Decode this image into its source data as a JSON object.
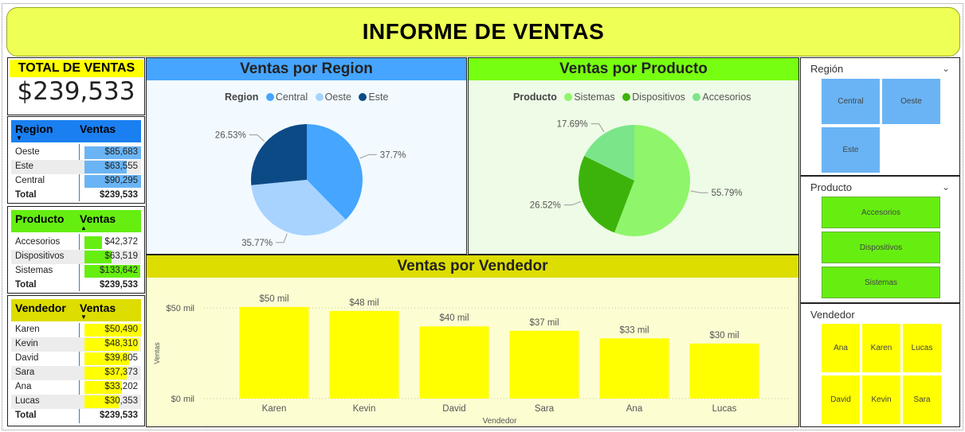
{
  "title": "INFORME DE VENTAS",
  "colors": {
    "yellow": "#ffff00",
    "blue": "#45a5ff",
    "green": "#66ee11",
    "light_yellow": "#eeff55"
  },
  "total": {
    "label": "TOTAL DE VENTAS",
    "value": "$239,533"
  },
  "region_table": {
    "col1": "Region",
    "col2": "Ventas",
    "rows": [
      {
        "name": "Oeste",
        "value": "$85,683",
        "amount": 85683
      },
      {
        "name": "Este",
        "value": "$63,555",
        "amount": 63555
      },
      {
        "name": "Central",
        "value": "$90,295",
        "amount": 90295
      }
    ],
    "total_label": "Total",
    "total_value": "$239,533"
  },
  "product_table": {
    "col1": "Producto",
    "col2": "Ventas",
    "rows": [
      {
        "name": "Accesorios",
        "value": "$42,372",
        "amount": 42372
      },
      {
        "name": "Dispositivos",
        "value": "$63,519",
        "amount": 63519
      },
      {
        "name": "Sistemas",
        "value": "$133,642",
        "amount": 133642
      }
    ],
    "total_label": "Total",
    "total_value": "$239,533"
  },
  "seller_table": {
    "col1": "Vendedor",
    "col2": "Ventas",
    "rows": [
      {
        "name": "Karen",
        "value": "$50,490",
        "amount": 50490
      },
      {
        "name": "Kevin",
        "value": "$48,310",
        "amount": 48310
      },
      {
        "name": "David",
        "value": "$39,805",
        "amount": 39805
      },
      {
        "name": "Sara",
        "value": "$37,373",
        "amount": 37373
      },
      {
        "name": "Ana",
        "value": "$33,202",
        "amount": 33202
      },
      {
        "name": "Lucas",
        "value": "$30,353",
        "amount": 30353
      }
    ],
    "total_label": "Total",
    "total_value": "$239,533"
  },
  "region_panel": {
    "title": "Ventas por Region",
    "legend_title": "Region"
  },
  "product_panel": {
    "title": "Ventas por Producto",
    "legend_title": "Producto"
  },
  "seller_panel": {
    "title": "Ventas por Vendedor"
  },
  "chart_data": [
    {
      "type": "pie",
      "title": "Ventas por Region",
      "legend_title": "Region",
      "categories": [
        "Central",
        "Oeste",
        "Este"
      ],
      "values": [
        37.7,
        35.77,
        26.53
      ],
      "labels": [
        "37.7%",
        "35.77%",
        "26.53%"
      ],
      "colors": [
        "#45a5ff",
        "#a8d3ff",
        "#0c4a86"
      ]
    },
    {
      "type": "pie",
      "title": "Ventas por Producto",
      "legend_title": "Producto",
      "categories": [
        "Sistemas",
        "Dispositivos",
        "Accesorios"
      ],
      "values": [
        55.79,
        26.52,
        17.69
      ],
      "labels": [
        "55.79%",
        "26.52%",
        "17.69%"
      ],
      "colors": [
        "#8ff56a",
        "#3cb30a",
        "#7be58a"
      ]
    },
    {
      "type": "bar",
      "title": "Ventas por Vendedor",
      "categories": [
        "Karen",
        "Kevin",
        "David",
        "Sara",
        "Ana",
        "Lucas"
      ],
      "values": [
        50490,
        48310,
        39805,
        37373,
        33202,
        30353
      ],
      "data_labels": [
        "$50 mil",
        "$48 mil",
        "$40 mil",
        "$37 mil",
        "$33 mil",
        "$30 mil"
      ],
      "yticks": [
        "$0 mil",
        "$50 mil"
      ],
      "xlabel": "Vendedor",
      "ylabel": "Ventas",
      "ylim": [
        0,
        50000
      ],
      "color": "#ffff00"
    }
  ],
  "slicers": {
    "region": {
      "title": "Región",
      "items": [
        "Central",
        "Oeste",
        "Este"
      ]
    },
    "product": {
      "title": "Producto",
      "items": [
        "Accesorios",
        "Dispositivos",
        "Sistemas"
      ]
    },
    "seller": {
      "title": "Vendedor",
      "items": [
        "Ana",
        "Karen",
        "Lucas",
        "David",
        "Kevin",
        "Sara"
      ]
    }
  },
  "icons": {
    "sort_down": "caret-down-icon",
    "sort_up": "caret-up-icon",
    "chevron": "chevron-down-icon"
  }
}
